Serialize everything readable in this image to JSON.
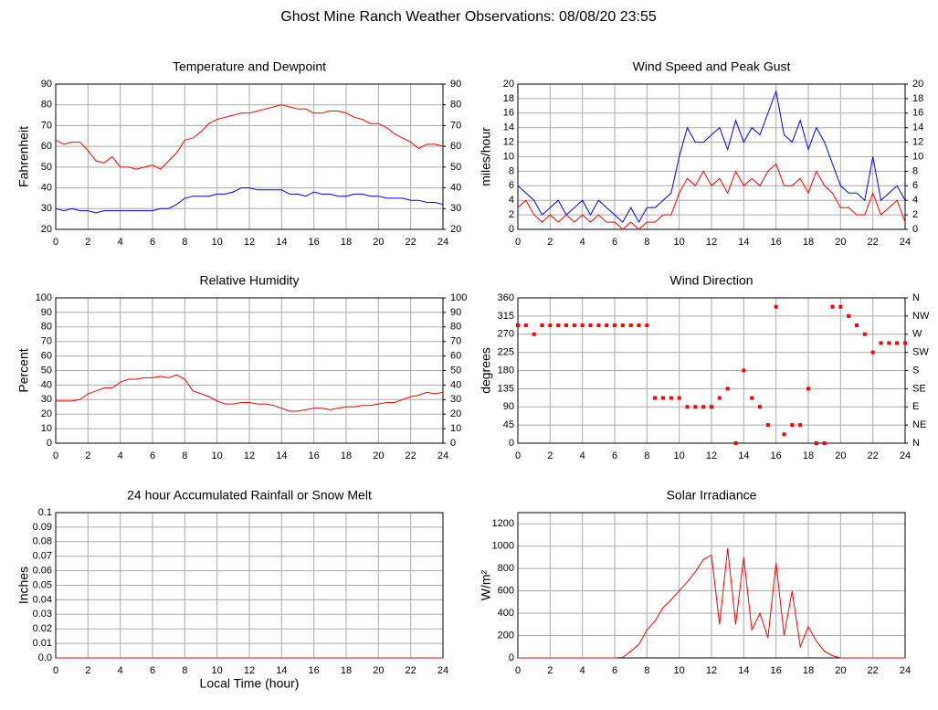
{
  "title": "Ghost Mine Ranch Weather Observations: 08/08/20 23:55",
  "chart_data": [
    {
      "type": "line",
      "title": "Temperature and Dewpoint",
      "ylabel": "Fahrenheit",
      "x": [
        0,
        0.5,
        1,
        1.5,
        2,
        2.5,
        3,
        3.5,
        4,
        4.5,
        5,
        5.5,
        6,
        6.5,
        7,
        7.5,
        8,
        8.5,
        9,
        9.5,
        10,
        10.5,
        11,
        11.5,
        12,
        12.5,
        13,
        13.5,
        14,
        14.5,
        15,
        15.5,
        16,
        16.5,
        17,
        17.5,
        18,
        18.5,
        19,
        19.5,
        20,
        20.5,
        21,
        21.5,
        22,
        22.5,
        23,
        23.5,
        24
      ],
      "xlim": [
        0,
        24
      ],
      "xticks": [
        0,
        2,
        4,
        6,
        8,
        10,
        12,
        14,
        16,
        18,
        20,
        22,
        24
      ],
      "ylim": [
        20,
        90
      ],
      "yticks": [
        20,
        30,
        40,
        50,
        60,
        70,
        80,
        90
      ],
      "y2lim": [
        20,
        90
      ],
      "y2ticks": [
        20,
        30,
        40,
        50,
        60,
        70,
        80,
        90
      ],
      "grid": true,
      "series": [
        {
          "color": "#ff0000",
          "values": [
            63,
            61,
            62,
            62,
            58,
            53,
            52,
            55,
            50,
            50,
            49,
            50,
            51,
            49,
            53,
            57,
            63,
            64,
            67,
            71,
            73,
            74,
            75,
            76,
            76,
            77,
            78,
            79,
            80,
            79,
            78,
            78,
            76,
            76,
            77,
            77,
            76,
            74,
            73,
            71,
            71,
            69,
            66,
            64,
            62,
            59,
            61,
            61,
            60
          ]
        },
        {
          "color": "#0000ff",
          "values": [
            30,
            29,
            30,
            29,
            29,
            28,
            29,
            29,
            29,
            29,
            29,
            29,
            29,
            30,
            30,
            32,
            35,
            36,
            36,
            36,
            37,
            37,
            38,
            40,
            40,
            39,
            39,
            39,
            39,
            37,
            37,
            36,
            38,
            37,
            37,
            36,
            36,
            37,
            37,
            36,
            36,
            35,
            35,
            35,
            34,
            34,
            33,
            33,
            32
          ]
        }
      ]
    },
    {
      "type": "line",
      "title": "Wind Speed and Peak Gust",
      "ylabel": "miles/hour",
      "x": [
        0,
        0.5,
        1,
        1.5,
        2,
        2.5,
        3,
        3.5,
        4,
        4.5,
        5,
        5.5,
        6,
        6.5,
        7,
        7.5,
        8,
        8.5,
        9,
        9.5,
        10,
        10.5,
        11,
        11.5,
        12,
        12.5,
        13,
        13.5,
        14,
        14.5,
        15,
        15.5,
        16,
        16.5,
        17,
        17.5,
        18,
        18.5,
        19,
        19.5,
        20,
        20.5,
        21,
        21.5,
        22,
        22.5,
        23,
        23.5,
        24
      ],
      "xlim": [
        0,
        24
      ],
      "xticks": [
        0,
        2,
        4,
        6,
        8,
        10,
        12,
        14,
        16,
        18,
        20,
        22,
        24
      ],
      "ylim": [
        0,
        20
      ],
      "yticks": [
        0,
        2,
        4,
        6,
        8,
        10,
        12,
        14,
        16,
        18,
        20
      ],
      "y2lim": [
        0,
        20
      ],
      "y2ticks": [
        0,
        2,
        4,
        6,
        8,
        10,
        12,
        14,
        16,
        18,
        20
      ],
      "grid": true,
      "series": [
        {
          "color": "#0000ff",
          "values": [
            6,
            5,
            4,
            2,
            3,
            4,
            2,
            3,
            4,
            2,
            4,
            3,
            2,
            1,
            3,
            1,
            3,
            3,
            4,
            5,
            10,
            14,
            12,
            12,
            13,
            14,
            11,
            15,
            12,
            14,
            13,
            16,
            19,
            13,
            12,
            15,
            11,
            14,
            12,
            9,
            6,
            5,
            5,
            4,
            10,
            4,
            5,
            6,
            4
          ]
        },
        {
          "color": "#ff0000",
          "values": [
            3,
            4,
            2,
            1,
            2,
            1,
            2,
            1,
            2,
            1,
            2,
            1,
            1,
            0,
            1,
            0,
            1,
            1,
            2,
            2,
            5,
            7,
            6,
            8,
            6,
            7,
            5,
            8,
            6,
            7,
            6,
            8,
            9,
            6,
            6,
            7,
            5,
            8,
            6,
            5,
            3,
            3,
            2,
            2,
            5,
            2,
            3,
            4,
            1
          ]
        }
      ]
    },
    {
      "type": "line",
      "title": "Relative Humidity",
      "ylabel": "Percent",
      "x": [
        0,
        0.5,
        1,
        1.5,
        2,
        2.5,
        3,
        3.5,
        4,
        4.5,
        5,
        5.5,
        6,
        6.5,
        7,
        7.5,
        8,
        8.5,
        9,
        9.5,
        10,
        10.5,
        11,
        11.5,
        12,
        12.5,
        13,
        13.5,
        14,
        14.5,
        15,
        15.5,
        16,
        16.5,
        17,
        17.5,
        18,
        18.5,
        19,
        19.5,
        20,
        20.5,
        21,
        21.5,
        22,
        22.5,
        23,
        23.5,
        24
      ],
      "xlim": [
        0,
        24
      ],
      "xticks": [
        0,
        2,
        4,
        6,
        8,
        10,
        12,
        14,
        16,
        18,
        20,
        22,
        24
      ],
      "ylim": [
        0,
        100
      ],
      "yticks": [
        0,
        10,
        20,
        30,
        40,
        50,
        60,
        70,
        80,
        90,
        100
      ],
      "y2lim": [
        0,
        100
      ],
      "y2ticks": [
        0,
        10,
        20,
        30,
        40,
        50,
        60,
        70,
        80,
        90,
        100
      ],
      "grid": true,
      "series": [
        {
          "color": "#ff0000",
          "values": [
            29,
            29,
            29,
            30,
            34,
            36,
            38,
            38,
            42,
            44,
            44,
            45,
            45,
            46,
            45,
            47,
            44,
            36,
            34,
            32,
            29,
            27,
            27,
            28,
            28,
            27,
            27,
            26,
            24,
            22,
            22,
            23,
            24,
            24,
            23,
            24,
            25,
            25,
            26,
            26,
            27,
            28,
            28,
            30,
            32,
            33,
            35,
            34,
            35
          ]
        }
      ]
    },
    {
      "type": "scatter",
      "title": "Wind Direction",
      "ylabel": "degrees",
      "x": [
        0,
        0.5,
        1,
        1.5,
        2,
        2.5,
        3,
        3.5,
        4,
        4.5,
        5,
        5.5,
        6,
        6.5,
        7,
        7.5,
        8,
        8.5,
        9,
        9.5,
        10,
        10.5,
        11,
        11.5,
        12,
        12.5,
        13,
        13.5,
        14,
        14.5,
        15,
        15.5,
        16,
        16.5,
        17,
        17.5,
        18,
        18.5,
        19,
        19.5,
        20,
        20.5,
        21,
        21.5,
        22,
        22.5,
        23,
        23.5,
        24
      ],
      "xlim": [
        0,
        24
      ],
      "xticks": [
        0,
        2,
        4,
        6,
        8,
        10,
        12,
        14,
        16,
        18,
        20,
        22,
        24
      ],
      "ylim": [
        0,
        360
      ],
      "yticks": [
        0,
        45,
        90,
        135,
        180,
        225,
        270,
        315,
        360
      ],
      "y2lim": [
        0,
        360
      ],
      "y2ticks": [
        {
          "value": 0,
          "label": "N"
        },
        {
          "value": 45,
          "label": "NE"
        },
        {
          "value": 90,
          "label": "E"
        },
        {
          "value": 135,
          "label": "SE"
        },
        {
          "value": 180,
          "label": "S"
        },
        {
          "value": 225,
          "label": "SW"
        },
        {
          "value": 270,
          "label": "W"
        },
        {
          "value": 315,
          "label": "NW"
        },
        {
          "value": 360,
          "label": "N"
        }
      ],
      "grid": true,
      "series": [
        {
          "color": "#ff0000",
          "values": [
            292,
            292,
            270,
            292,
            292,
            292,
            292,
            292,
            292,
            292,
            292,
            292,
            292,
            292,
            292,
            292,
            292,
            112,
            112,
            112,
            112,
            90,
            90,
            90,
            90,
            112,
            135,
            0,
            180,
            112,
            90,
            45,
            338,
            22,
            45,
            45,
            135,
            0,
            0,
            338,
            338,
            315,
            292,
            270,
            225,
            248,
            248,
            248,
            248
          ]
        }
      ]
    },
    {
      "type": "line",
      "title": "24 hour Accumulated Rainfall or Snow Melt",
      "ylabel": "Inches",
      "xlabel": "Local Time (hour)",
      "x": [
        0,
        0.5,
        1,
        1.5,
        2,
        2.5,
        3,
        3.5,
        4,
        4.5,
        5,
        5.5,
        6,
        6.5,
        7,
        7.5,
        8,
        8.5,
        9,
        9.5,
        10,
        10.5,
        11,
        11.5,
        12,
        12.5,
        13,
        13.5,
        14,
        14.5,
        15,
        15.5,
        16,
        16.5,
        17,
        17.5,
        18,
        18.5,
        19,
        19.5,
        20,
        20.5,
        21,
        21.5,
        22,
        22.5,
        23,
        23.5,
        24
      ],
      "xlim": [
        0,
        24
      ],
      "xticks": [
        0,
        2,
        4,
        6,
        8,
        10,
        12,
        14,
        16,
        18,
        20,
        22,
        24
      ],
      "ylim": [
        0,
        0.1
      ],
      "yticks": [
        {
          "value": 0,
          "label": "0.0"
        },
        0.01,
        0.02,
        0.03,
        0.04,
        0.05,
        0.06,
        0.07,
        0.08,
        0.09,
        0.1
      ],
      "grid": true,
      "series": [
        {
          "color": "#ff0000",
          "values": [
            0,
            0,
            0,
            0,
            0,
            0,
            0,
            0,
            0,
            0,
            0,
            0,
            0,
            0,
            0,
            0,
            0,
            0,
            0,
            0,
            0,
            0,
            0,
            0,
            0,
            0,
            0,
            0,
            0,
            0,
            0,
            0,
            0,
            0,
            0,
            0,
            0,
            0,
            0,
            0,
            0,
            0,
            0,
            0,
            0,
            0,
            0,
            0,
            0
          ]
        }
      ]
    },
    {
      "type": "line",
      "title": "Solar Irradiance",
      "ylabel": "W/m²",
      "x": [
        0,
        0.5,
        1,
        1.5,
        2,
        2.5,
        3,
        3.5,
        4,
        4.5,
        5,
        5.5,
        6,
        6.5,
        7,
        7.5,
        8,
        8.5,
        9,
        9.5,
        10,
        10.5,
        11,
        11.5,
        12,
        12.5,
        13,
        13.5,
        14,
        14.5,
        15,
        15.5,
        16,
        16.5,
        17,
        17.5,
        18,
        18.5,
        19,
        19.5,
        20,
        20.5,
        21,
        21.5,
        22,
        22.5,
        23,
        23.5,
        24
      ],
      "xlim": [
        0,
        24
      ],
      "xticks": [
        0,
        2,
        4,
        6,
        8,
        10,
        12,
        14,
        16,
        18,
        20,
        22,
        24
      ],
      "ylim": [
        0,
        1300
      ],
      "yticks": [
        0,
        200,
        400,
        600,
        800,
        1000,
        1200
      ],
      "grid": true,
      "series": [
        {
          "color": "#ff0000",
          "values": [
            0,
            0,
            0,
            0,
            0,
            0,
            0,
            0,
            0,
            0,
            0,
            0,
            0,
            5,
            60,
            120,
            250,
            330,
            450,
            520,
            600,
            680,
            770,
            880,
            920,
            300,
            980,
            300,
            900,
            250,
            400,
            180,
            850,
            200,
            600,
            100,
            280,
            150,
            60,
            20,
            0,
            0,
            0,
            0,
            0,
            0,
            0,
            0,
            0
          ]
        }
      ]
    }
  ]
}
